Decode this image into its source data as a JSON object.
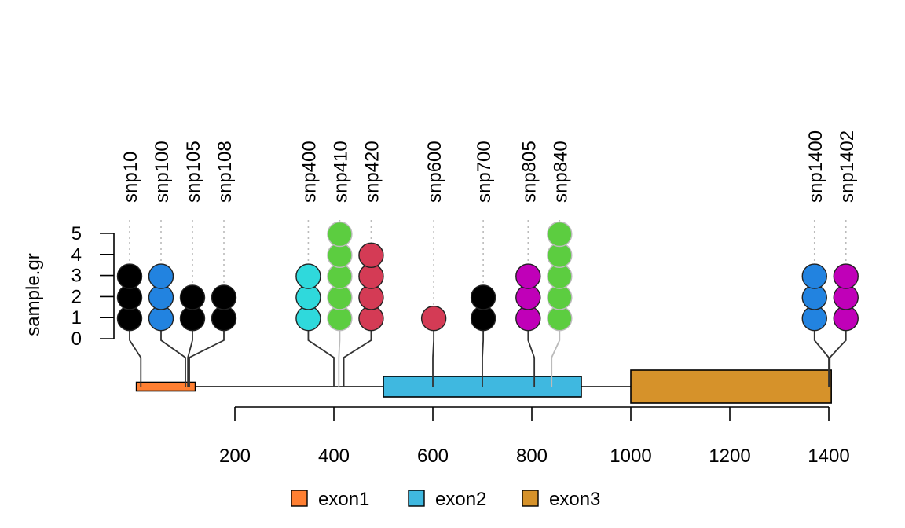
{
  "chart_data": {
    "type": "lollipop",
    "ylabel": "sample.gr",
    "ylim": [
      0,
      5
    ],
    "y_ticks": [
      "0",
      "1",
      "2",
      "3",
      "4",
      "5"
    ],
    "x_ticks": [
      "200",
      "400",
      "600",
      "800",
      "1000",
      "1200",
      "1400"
    ],
    "xlim": [
      200,
      1400
    ],
    "exons": [
      {
        "name": "exon1",
        "start": 1,
        "end": 120,
        "color": "#FF7F32"
      },
      {
        "name": "exon2",
        "start": 500,
        "end": 900,
        "color": "#3FB8E0"
      },
      {
        "name": "exon3",
        "start": 1000,
        "end": 1405,
        "color": "#D6922A"
      }
    ],
    "gene_range": [
      1,
      1405
    ],
    "snps": [
      {
        "name": "snp10",
        "position": 10,
        "score": 3,
        "color": "#000000"
      },
      {
        "name": "snp100",
        "position": 100,
        "score": 3,
        "color": "#2283E0"
      },
      {
        "name": "snp105",
        "position": 105,
        "score": 2,
        "color": "#000000"
      },
      {
        "name": "snp108",
        "position": 108,
        "score": 2,
        "color": "#000000"
      },
      {
        "name": "snp400",
        "position": 400,
        "score": 3,
        "color": "#2FD9DC"
      },
      {
        "name": "snp410",
        "position": 410,
        "score": 5,
        "color": "#5CCD40"
      },
      {
        "name": "snp420",
        "position": 420,
        "score": 4,
        "color": "#D43B55"
      },
      {
        "name": "snp600",
        "position": 600,
        "score": 1,
        "color": "#D43B55"
      },
      {
        "name": "snp700",
        "position": 700,
        "score": 2,
        "color": "#000000"
      },
      {
        "name": "snp805",
        "position": 805,
        "score": 3,
        "color": "#C000B8"
      },
      {
        "name": "snp840",
        "position": 840,
        "score": 5,
        "color": "#5CCD40"
      },
      {
        "name": "snp1400",
        "position": 1400,
        "score": 3,
        "color": "#2283E0"
      },
      {
        "name": "snp1402",
        "position": 1402,
        "score": 3,
        "color": "#C000B8"
      }
    ],
    "legend_placement": "bottom",
    "grid": false
  }
}
